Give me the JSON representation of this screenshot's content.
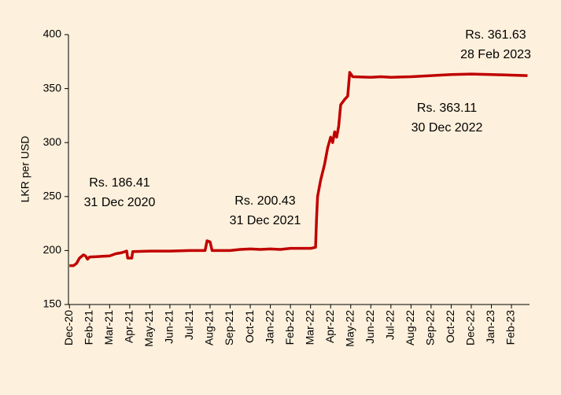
{
  "chart_data": {
    "type": "line",
    "y_label": "LKR per USD",
    "xlim": [
      -0.05,
      22.9
    ],
    "ylim": [
      150,
      400
    ],
    "yticks": [
      150,
      200,
      250,
      300,
      350,
      400
    ],
    "xticks": [
      {
        "value": 0,
        "label": "Dec-20"
      },
      {
        "value": 1,
        "label": "Feb-21"
      },
      {
        "value": 2,
        "label": "Mar-21"
      },
      {
        "value": 3,
        "label": "Apr-21"
      },
      {
        "value": 4,
        "label": "May-21"
      },
      {
        "value": 5,
        "label": "Jun-21"
      },
      {
        "value": 6,
        "label": "Jul-21"
      },
      {
        "value": 7,
        "label": "Aug-21"
      },
      {
        "value": 8,
        "label": "Sep-21"
      },
      {
        "value": 9,
        "label": "Oct-21"
      },
      {
        "value": 10,
        "label": "Jan-22"
      },
      {
        "value": 11,
        "label": "Feb-22"
      },
      {
        "value": 12,
        "label": "Mar-22"
      },
      {
        "value": 13,
        "label": "Apr-22"
      },
      {
        "value": 14,
        "label": "May-22"
      },
      {
        "value": 15,
        "label": "Jun-22"
      },
      {
        "value": 16,
        "label": "Jul-22"
      },
      {
        "value": 17,
        "label": "Aug-22"
      },
      {
        "value": 18,
        "label": "Sep-22"
      },
      {
        "value": 19,
        "label": "Oct-22"
      },
      {
        "value": 20,
        "label": "Dec-22"
      },
      {
        "value": 21,
        "label": "Jan-23"
      },
      {
        "value": 22,
        "label": "Feb-23"
      }
    ],
    "x": [
      0,
      0.2,
      0.35,
      0.5,
      0.7,
      0.8,
      0.9,
      1.0,
      1.5,
      2.0,
      2.3,
      2.6,
      2.85,
      2.9,
      3.1,
      3.15,
      4.0,
      5.0,
      6.0,
      6.75,
      6.85,
      7.0,
      7.1,
      8.0,
      8.5,
      9.0,
      9.5,
      10.0,
      10.5,
      11.0,
      11.5,
      12.0,
      12.25,
      12.3,
      12.35,
      12.5,
      12.7,
      12.85,
      13.0,
      13.1,
      13.2,
      13.3,
      13.4,
      13.5,
      13.7,
      13.85,
      13.95,
      14.1,
      15.0,
      15.5,
      16.0,
      17.0,
      18.0,
      19.0,
      20.0,
      21.0,
      22.0,
      22.8
    ],
    "series": [
      {
        "name": "LKR per USD",
        "color": "#c00000",
        "values": [
          186,
          186,
          188,
          193,
          196,
          195,
          192,
          194,
          194.5,
          195,
          197,
          198,
          199.5,
          193,
          193,
          199,
          199.5,
          199.5,
          200,
          200,
          209,
          208,
          200,
          200,
          201,
          201.5,
          201,
          201.5,
          201,
          202,
          202,
          202,
          203,
          230,
          250,
          265,
          280,
          295,
          305,
          300,
          310,
          305,
          315,
          335,
          340,
          343,
          365,
          361,
          360.5,
          361,
          360.5,
          361,
          362,
          363,
          363.5,
          363,
          362.5,
          362
        ]
      }
    ],
    "annotations": [
      {
        "lines": [
          "Rs. 186.41",
          "31 Dec 2020"
        ]
      },
      {
        "lines": [
          "Rs. 200.43",
          "31 Dec 2021"
        ]
      },
      {
        "lines": [
          "Rs. 363.11",
          "30 Dec 2022"
        ]
      },
      {
        "lines": [
          "Rs. 361.63",
          "28 Feb 2023"
        ]
      }
    ]
  }
}
